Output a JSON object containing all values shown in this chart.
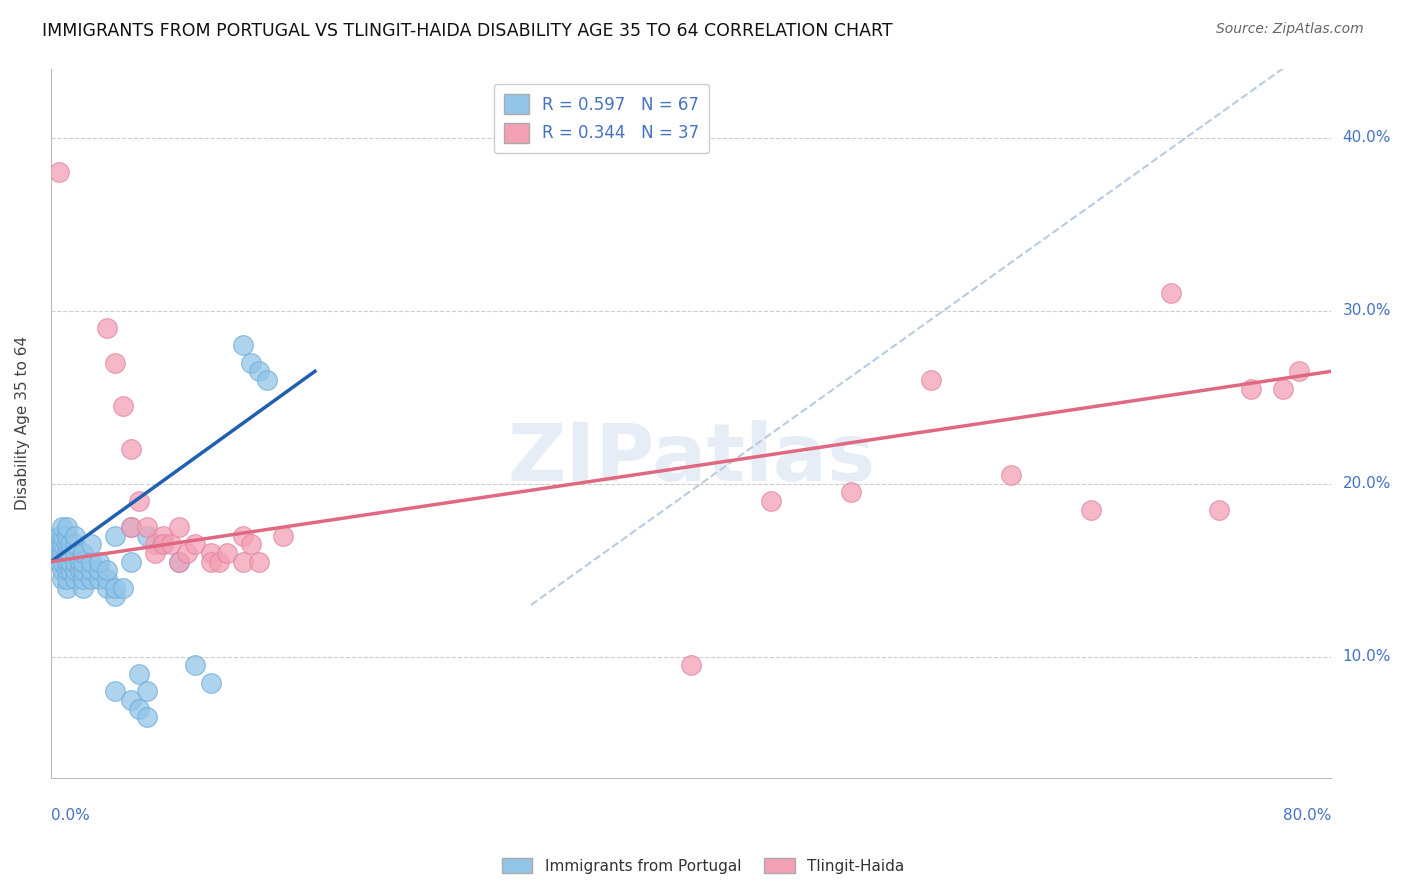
{
  "title": "IMMIGRANTS FROM PORTUGAL VS TLINGIT-HAIDA DISABILITY AGE 35 TO 64 CORRELATION CHART",
  "source": "Source: ZipAtlas.com",
  "ylabel": "Disability Age 35 to 64",
  "ytick_labels": [
    "10.0%",
    "20.0%",
    "30.0%",
    "40.0%"
  ],
  "ytick_values": [
    0.1,
    0.2,
    0.3,
    0.4
  ],
  "xlim": [
    0.0,
    0.8
  ],
  "ylim": [
    0.03,
    0.44
  ],
  "blue_color": "#92C5E8",
  "pink_color": "#F4A0B5",
  "line_blue": "#2060B0",
  "line_pink": "#E06880",
  "line_dashed_color": "#B8CCE0",
  "watermark": "ZIPatlas",
  "blue_scatter": [
    [
      0.005,
      0.155
    ],
    [
      0.005,
      0.16
    ],
    [
      0.005,
      0.165
    ],
    [
      0.005,
      0.17
    ],
    [
      0.007,
      0.145
    ],
    [
      0.007,
      0.15
    ],
    [
      0.007,
      0.155
    ],
    [
      0.007,
      0.16
    ],
    [
      0.007,
      0.165
    ],
    [
      0.007,
      0.17
    ],
    [
      0.007,
      0.175
    ],
    [
      0.01,
      0.14
    ],
    [
      0.01,
      0.145
    ],
    [
      0.01,
      0.15
    ],
    [
      0.01,
      0.155
    ],
    [
      0.01,
      0.16
    ],
    [
      0.01,
      0.165
    ],
    [
      0.01,
      0.17
    ],
    [
      0.01,
      0.175
    ],
    [
      0.012,
      0.15
    ],
    [
      0.012,
      0.155
    ],
    [
      0.012,
      0.16
    ],
    [
      0.012,
      0.165
    ],
    [
      0.015,
      0.145
    ],
    [
      0.015,
      0.15
    ],
    [
      0.015,
      0.155
    ],
    [
      0.015,
      0.16
    ],
    [
      0.015,
      0.165
    ],
    [
      0.015,
      0.17
    ],
    [
      0.018,
      0.15
    ],
    [
      0.018,
      0.155
    ],
    [
      0.02,
      0.14
    ],
    [
      0.02,
      0.145
    ],
    [
      0.02,
      0.15
    ],
    [
      0.02,
      0.155
    ],
    [
      0.02,
      0.16
    ],
    [
      0.025,
      0.145
    ],
    [
      0.025,
      0.15
    ],
    [
      0.025,
      0.155
    ],
    [
      0.025,
      0.165
    ],
    [
      0.03,
      0.145
    ],
    [
      0.03,
      0.15
    ],
    [
      0.03,
      0.155
    ],
    [
      0.035,
      0.14
    ],
    [
      0.035,
      0.145
    ],
    [
      0.035,
      0.15
    ],
    [
      0.04,
      0.135
    ],
    [
      0.04,
      0.14
    ],
    [
      0.04,
      0.17
    ],
    [
      0.045,
      0.14
    ],
    [
      0.05,
      0.155
    ],
    [
      0.05,
      0.175
    ],
    [
      0.055,
      0.09
    ],
    [
      0.06,
      0.08
    ],
    [
      0.06,
      0.17
    ],
    [
      0.07,
      0.165
    ],
    [
      0.08,
      0.155
    ],
    [
      0.09,
      0.095
    ],
    [
      0.1,
      0.085
    ],
    [
      0.12,
      0.28
    ],
    [
      0.125,
      0.27
    ],
    [
      0.13,
      0.265
    ],
    [
      0.135,
      0.26
    ],
    [
      0.04,
      0.08
    ],
    [
      0.05,
      0.075
    ],
    [
      0.055,
      0.07
    ],
    [
      0.06,
      0.065
    ]
  ],
  "pink_scatter": [
    [
      0.005,
      0.38
    ],
    [
      0.035,
      0.29
    ],
    [
      0.04,
      0.27
    ],
    [
      0.045,
      0.245
    ],
    [
      0.05,
      0.22
    ],
    [
      0.05,
      0.175
    ],
    [
      0.055,
      0.19
    ],
    [
      0.06,
      0.175
    ],
    [
      0.065,
      0.165
    ],
    [
      0.065,
      0.16
    ],
    [
      0.07,
      0.17
    ],
    [
      0.07,
      0.165
    ],
    [
      0.075,
      0.165
    ],
    [
      0.08,
      0.155
    ],
    [
      0.08,
      0.175
    ],
    [
      0.085,
      0.16
    ],
    [
      0.09,
      0.165
    ],
    [
      0.1,
      0.16
    ],
    [
      0.1,
      0.155
    ],
    [
      0.105,
      0.155
    ],
    [
      0.11,
      0.16
    ],
    [
      0.12,
      0.17
    ],
    [
      0.12,
      0.155
    ],
    [
      0.125,
      0.165
    ],
    [
      0.13,
      0.155
    ],
    [
      0.145,
      0.17
    ],
    [
      0.4,
      0.095
    ],
    [
      0.45,
      0.19
    ],
    [
      0.5,
      0.195
    ],
    [
      0.55,
      0.26
    ],
    [
      0.6,
      0.205
    ],
    [
      0.65,
      0.185
    ],
    [
      0.7,
      0.31
    ],
    [
      0.73,
      0.185
    ],
    [
      0.75,
      0.255
    ],
    [
      0.77,
      0.255
    ],
    [
      0.78,
      0.265
    ]
  ],
  "blue_line_x": [
    0.0,
    0.165
  ],
  "blue_line_y": [
    0.155,
    0.265
  ],
  "pink_line_x": [
    0.0,
    0.8
  ],
  "pink_line_y": [
    0.155,
    0.265
  ],
  "dashed_line_x": [
    0.3,
    0.8
  ],
  "dashed_line_y": [
    0.13,
    0.46
  ]
}
